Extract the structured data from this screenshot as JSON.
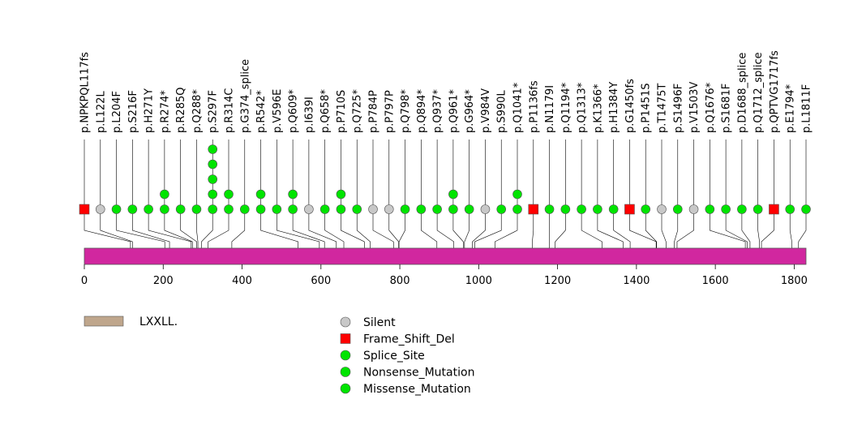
{
  "chart_data": {
    "type": "lollipop",
    "title": "",
    "xlabel": "",
    "ylabel": "",
    "protein_length": 1830,
    "xlim": [
      0,
      1830
    ],
    "x_ticks": [
      0,
      200,
      400,
      600,
      800,
      1000,
      1200,
      1400,
      1600,
      1800
    ],
    "colors": {
      "protein": "#d1279f",
      "domain": "#bfa68c",
      "Silent": "#c8c8c8",
      "Frame_Shift_Del": "#ff0000",
      "Splice_Site": "#00e400",
      "Nonsense_Mutation": "#00e400",
      "Missense_Mutation": "#00e400"
    },
    "domains": [
      {
        "name": "LXXLL."
      }
    ],
    "legend": {
      "position": "bottom",
      "types": [
        "Silent",
        "Frame_Shift_Del",
        "Splice_Site",
        "Nonsense_Mutation",
        "Missense_Mutation"
      ],
      "shapes": [
        "circle",
        "square",
        "circle",
        "circle",
        "circle"
      ]
    },
    "mutations": [
      {
        "label": "p.NPKPQL117fs",
        "pos": 117,
        "count": 1,
        "type": "Frame_Shift_Del"
      },
      {
        "label": "p.L122L",
        "pos": 122,
        "count": 1,
        "type": "Silent"
      },
      {
        "label": "p.L204F",
        "pos": 204,
        "count": 1,
        "type": "Missense_Mutation"
      },
      {
        "label": "p.S216F",
        "pos": 216,
        "count": 1,
        "type": "Missense_Mutation"
      },
      {
        "label": "p.H271Y",
        "pos": 271,
        "count": 1,
        "type": "Missense_Mutation"
      },
      {
        "label": "p.R274*",
        "pos": 274,
        "count": 2,
        "type": "Nonsense_Mutation"
      },
      {
        "label": "p.R285Q",
        "pos": 285,
        "count": 1,
        "type": "Missense_Mutation"
      },
      {
        "label": "p.Q288*",
        "pos": 288,
        "count": 1,
        "type": "Nonsense_Mutation"
      },
      {
        "label": "p.S297F",
        "pos": 297,
        "count": 5,
        "type": "Missense_Mutation"
      },
      {
        "label": "p.R314C",
        "pos": 314,
        "count": 2,
        "type": "Missense_Mutation"
      },
      {
        "label": "p.G374_splice",
        "pos": 374,
        "count": 1,
        "type": "Splice_Site"
      },
      {
        "label": "p.R542*",
        "pos": 542,
        "count": 2,
        "type": "Nonsense_Mutation"
      },
      {
        "label": "p.V596E",
        "pos": 596,
        "count": 1,
        "type": "Missense_Mutation"
      },
      {
        "label": "p.Q609*",
        "pos": 609,
        "count": 2,
        "type": "Nonsense_Mutation"
      },
      {
        "label": "p.I639I",
        "pos": 639,
        "count": 1,
        "type": "Silent"
      },
      {
        "label": "p.Q658*",
        "pos": 658,
        "count": 1,
        "type": "Nonsense_Mutation"
      },
      {
        "label": "p.P710S",
        "pos": 710,
        "count": 2,
        "type": "Missense_Mutation"
      },
      {
        "label": "p.Q725*",
        "pos": 725,
        "count": 1,
        "type": "Nonsense_Mutation"
      },
      {
        "label": "p.P784P",
        "pos": 784,
        "count": 1,
        "type": "Silent"
      },
      {
        "label": "p.P797P",
        "pos": 797,
        "count": 1,
        "type": "Silent"
      },
      {
        "label": "p.Q798*",
        "pos": 798,
        "count": 1,
        "type": "Nonsense_Mutation"
      },
      {
        "label": "p.Q894*",
        "pos": 894,
        "count": 1,
        "type": "Nonsense_Mutation"
      },
      {
        "label": "p.Q937*",
        "pos": 937,
        "count": 1,
        "type": "Nonsense_Mutation"
      },
      {
        "label": "p.Q961*",
        "pos": 961,
        "count": 2,
        "type": "Nonsense_Mutation"
      },
      {
        "label": "p.G964*",
        "pos": 964,
        "count": 1,
        "type": "Nonsense_Mutation"
      },
      {
        "label": "p.V984V",
        "pos": 984,
        "count": 1,
        "type": "Silent"
      },
      {
        "label": "p.S990L",
        "pos": 990,
        "count": 1,
        "type": "Missense_Mutation"
      },
      {
        "label": "p.Q1041*",
        "pos": 1041,
        "count": 2,
        "type": "Nonsense_Mutation"
      },
      {
        "label": "p.P1136fs",
        "pos": 1136,
        "count": 1,
        "type": "Frame_Shift_Del"
      },
      {
        "label": "p.N1179I",
        "pos": 1179,
        "count": 1,
        "type": "Missense_Mutation"
      },
      {
        "label": "p.Q1194*",
        "pos": 1194,
        "count": 1,
        "type": "Nonsense_Mutation"
      },
      {
        "label": "p.Q1313*",
        "pos": 1313,
        "count": 1,
        "type": "Nonsense_Mutation"
      },
      {
        "label": "p.K1366*",
        "pos": 1366,
        "count": 1,
        "type": "Nonsense_Mutation"
      },
      {
        "label": "p.H1384Y",
        "pos": 1384,
        "count": 1,
        "type": "Missense_Mutation"
      },
      {
        "label": "p.G1450fs",
        "pos": 1450,
        "count": 1,
        "type": "Frame_Shift_Del"
      },
      {
        "label": "p.P1451S",
        "pos": 1451,
        "count": 1,
        "type": "Missense_Mutation"
      },
      {
        "label": "p.T1475T",
        "pos": 1475,
        "count": 1,
        "type": "Silent"
      },
      {
        "label": "p.S1496F",
        "pos": 1496,
        "count": 1,
        "type": "Missense_Mutation"
      },
      {
        "label": "p.V1503V",
        "pos": 1503,
        "count": 1,
        "type": "Silent"
      },
      {
        "label": "p.Q1676*",
        "pos": 1676,
        "count": 1,
        "type": "Nonsense_Mutation"
      },
      {
        "label": "p.S1681F",
        "pos": 1681,
        "count": 1,
        "type": "Missense_Mutation"
      },
      {
        "label": "p.D1688_splice",
        "pos": 1688,
        "count": 1,
        "type": "Splice_Site"
      },
      {
        "label": "p.Q1712_splice",
        "pos": 1712,
        "count": 1,
        "type": "Splice_Site"
      },
      {
        "label": "p.QPTVG1717fs",
        "pos": 1717,
        "count": 1,
        "type": "Frame_Shift_Del"
      },
      {
        "label": "p.E1794*",
        "pos": 1794,
        "count": 1,
        "type": "Nonsense_Mutation"
      },
      {
        "label": "p.L1811F",
        "pos": 1811,
        "count": 1,
        "type": "Missense_Mutation"
      }
    ]
  }
}
